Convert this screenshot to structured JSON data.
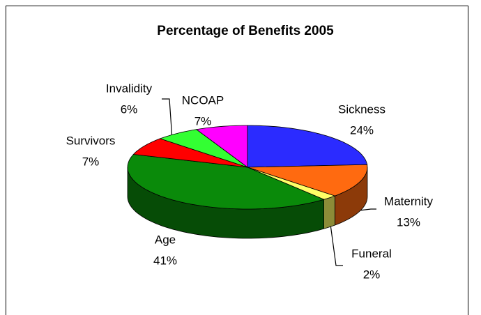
{
  "chart_data": {
    "type": "pie3d",
    "title": "Percentage of Benefits 2005",
    "categories": [
      "Sickness",
      "Maternity",
      "Funeral",
      "Age",
      "Survivors",
      "Invalidity",
      "NCOAP"
    ],
    "values": [
      24,
      13,
      2,
      41,
      7,
      6,
      7
    ],
    "value_labels": [
      "24%",
      "13%",
      "2%",
      "41%",
      "7%",
      "6%",
      "7%"
    ],
    "colors": [
      "#2b2bff",
      "#ff6a10",
      "#ffff66",
      "#0a8a0a",
      "#ff0000",
      "#33ff33",
      "#ff00ff"
    ]
  }
}
